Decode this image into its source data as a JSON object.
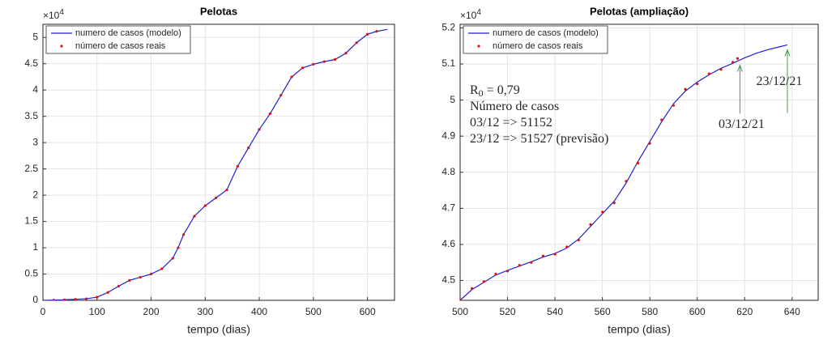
{
  "chart_data": [
    {
      "type": "line",
      "title": "Pelotas",
      "xlabel": "tempo (dias)",
      "exponent_label": {
        "base": "×10",
        "power": "4"
      },
      "xlim": [
        0,
        650
      ],
      "xticks": [
        0,
        100,
        200,
        300,
        400,
        500,
        600
      ],
      "ylim": [
        0,
        5.25
      ],
      "yticks": [
        0,
        0.5,
        1,
        1.5,
        2,
        2.5,
        3,
        3.5,
        4,
        4.5,
        5
      ],
      "grid": true,
      "legend": "top-left",
      "x": [
        0,
        20,
        40,
        60,
        80,
        100,
        120,
        140,
        160,
        180,
        200,
        220,
        240,
        250,
        260,
        280,
        300,
        320,
        340,
        360,
        380,
        400,
        420,
        440,
        460,
        480,
        500,
        520,
        540,
        560,
        580,
        600,
        617,
        637
      ],
      "series": [
        {
          "name": "numero de casos (modelo)",
          "color": "#1f1fd0",
          "style": "line",
          "values": [
            0,
            0.005,
            0.01,
            0.02,
            0.03,
            0.06,
            0.15,
            0.27,
            0.38,
            0.44,
            0.5,
            0.6,
            0.8,
            1.0,
            1.25,
            1.6,
            1.8,
            1.95,
            2.1,
            2.55,
            2.9,
            3.25,
            3.55,
            3.9,
            4.25,
            4.42,
            4.49,
            4.54,
            4.58,
            4.7,
            4.9,
            5.06,
            5.115,
            5.153
          ]
        },
        {
          "name": "número de casos reais",
          "color": "#dd1111",
          "style": "points",
          "values": [
            0,
            0.005,
            0.01,
            0.02,
            0.03,
            0.06,
            0.15,
            0.27,
            0.38,
            0.44,
            0.5,
            0.6,
            0.8,
            1.0,
            1.25,
            1.6,
            1.8,
            1.95,
            2.1,
            2.55,
            2.9,
            3.25,
            3.55,
            3.9,
            4.25,
            4.42,
            4.49,
            4.54,
            4.58,
            4.7,
            4.9,
            5.06,
            5.115,
            null
          ]
        }
      ]
    },
    {
      "type": "line",
      "title": "Pelotas (ampliação)",
      "xlabel": "tempo (dias)",
      "exponent_label": {
        "base": "×10",
        "power": "4"
      },
      "xlim": [
        500,
        651
      ],
      "xticks": [
        500,
        520,
        540,
        560,
        580,
        600,
        620,
        640
      ],
      "ylim": [
        4.445,
        5.21
      ],
      "yticks": [
        4.5,
        4.6,
        4.7,
        4.8,
        4.9,
        5,
        5.1,
        5.2
      ],
      "grid": true,
      "legend": "top-left",
      "x": [
        500,
        505,
        510,
        515,
        520,
        525,
        530,
        535,
        540,
        545,
        550,
        555,
        560,
        565,
        570,
        575,
        580,
        585,
        590,
        595,
        600,
        605,
        610,
        615,
        617,
        620,
        625,
        630,
        635,
        638
      ],
      "series": [
        {
          "name": "numero de casos (modelo)",
          "color": "#1f1fd0",
          "style": "line",
          "values": [
            4.445,
            4.475,
            4.495,
            4.515,
            4.528,
            4.54,
            4.552,
            4.565,
            4.575,
            4.59,
            4.615,
            4.65,
            4.685,
            4.72,
            4.77,
            4.83,
            4.885,
            4.94,
            4.99,
            5.025,
            5.05,
            5.07,
            5.088,
            5.102,
            5.108,
            5.117,
            5.13,
            5.14,
            5.148,
            5.153
          ]
        },
        {
          "name": "número de casos reais",
          "color": "#dd1111",
          "style": "points",
          "values": [
            4.447,
            4.478,
            4.497,
            4.518,
            4.526,
            4.542,
            4.55,
            4.568,
            4.573,
            4.593,
            4.612,
            4.655,
            4.69,
            4.715,
            4.775,
            4.825,
            4.88,
            4.945,
            4.985,
            5.03,
            5.045,
            5.073,
            5.085,
            5.105,
            5.1152,
            null,
            null,
            null,
            null,
            null
          ]
        }
      ],
      "annotations": [
        {
          "text": "R",
          "subscript": "0",
          "suffix": " = 0,79",
          "color": "#3aa64a"
        },
        {
          "text": "Número de casos",
          "color": "#3aa64a"
        },
        {
          "text": "03/12 => 51152",
          "color": "#dd2222"
        },
        {
          "text": "23/12 => 51527 (previsão)",
          "color": "#2a3aa8"
        }
      ],
      "arrows": [
        {
          "text": "03/12/21",
          "x": 618,
          "y": 5.11,
          "color": "#3aa64a"
        },
        {
          "text": "23/12/21",
          "x": 638,
          "y": 5.153,
          "color": "#3aa64a"
        }
      ]
    }
  ]
}
